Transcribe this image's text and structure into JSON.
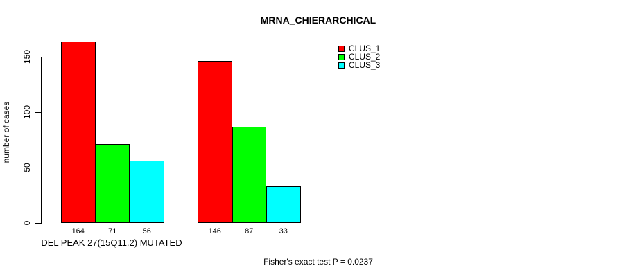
{
  "chart_data": {
    "type": "bar",
    "title": "MRNA_CHIERARCHICAL",
    "ylabel": "number of cases",
    "xlabel": "DEL PEAK 27(15Q11.2) MUTATED",
    "annotation": "Fisher's exact test P = 0.0237",
    "yticks": [
      0,
      50,
      100,
      150
    ],
    "ylim": [
      0,
      164
    ],
    "grid": false,
    "legend_position": "top-right-inside",
    "n_groups": 2,
    "series": [
      {
        "name": "CLUS_1",
        "color": "#ff0000",
        "values": [
          164,
          146
        ]
      },
      {
        "name": "CLUS_2",
        "color": "#00ff00",
        "values": [
          71,
          87
        ]
      },
      {
        "name": "CLUS_3",
        "color": "#00ffff",
        "values": [
          56,
          33
        ]
      }
    ],
    "bar_value_labels": [
      "164",
      "71",
      "56",
      "146",
      "87",
      "33"
    ]
  },
  "colors": {
    "background": "#ffffff",
    "axis": "#000000",
    "text": "#000000",
    "clus_1": "#ff0000",
    "clus_2": "#00ff00",
    "clus_3": "#00ffff"
  }
}
